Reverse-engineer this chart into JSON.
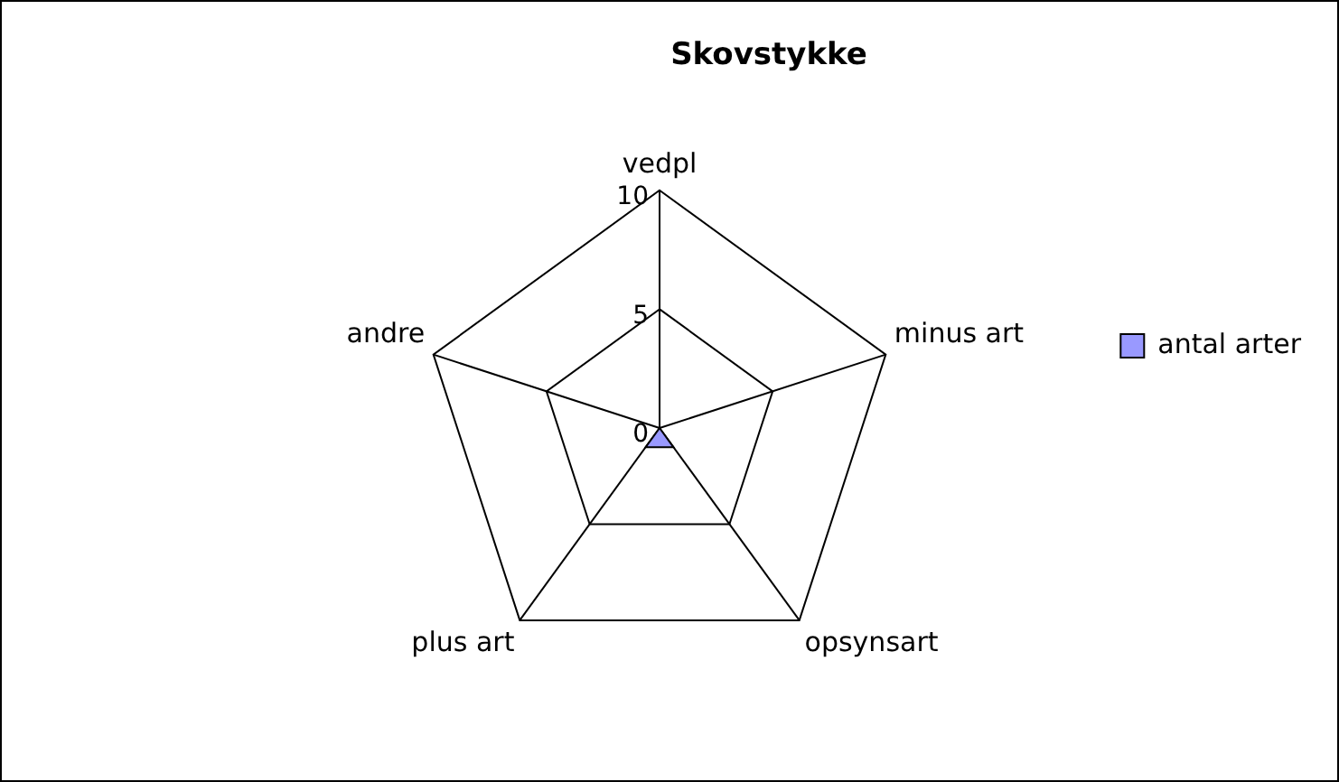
{
  "chart_data": {
    "type": "radar",
    "title": "Skovstykke",
    "categories": [
      "vedpl",
      "minus art",
      "opsynsart",
      "plus art",
      "andre"
    ],
    "series": [
      {
        "name": "antal arter",
        "color": "#9999ff",
        "values": [
          1,
          0,
          1,
          1,
          0
        ]
      }
    ],
    "ylim": [
      0,
      10
    ],
    "yticks": [
      0,
      5,
      10
    ],
    "grid": true,
    "legend": "right",
    "marker": "none"
  }
}
